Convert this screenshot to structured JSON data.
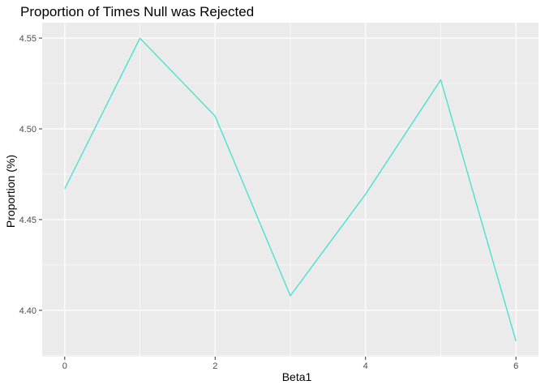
{
  "chart_data": {
    "type": "line",
    "title": "Proportion of Times Null was Rejected",
    "xlabel": "Beta1",
    "ylabel": "Proportion (%)",
    "x": [
      0,
      1,
      2,
      3,
      4,
      5,
      6
    ],
    "series": [
      {
        "values": [
          4.467,
          4.55,
          4.507,
          4.408,
          4.464,
          4.527,
          4.383
        ]
      }
    ],
    "xticks": [
      0,
      2,
      4,
      6
    ],
    "xtick_labels": [
      "0",
      "2",
      "4",
      "6"
    ],
    "yticks": [
      4.4,
      4.45,
      4.5,
      4.55
    ],
    "ytick_labels": [
      "4.40",
      "4.45",
      "4.50",
      "4.55"
    ],
    "xlim": [
      -0.3,
      6.3
    ],
    "ylim": [
      4.3745,
      4.5585
    ],
    "grid": true,
    "colors": {
      "line": "#40E0D0",
      "panel": "#EBEBEB",
      "grid": "#FFFFFF"
    }
  }
}
